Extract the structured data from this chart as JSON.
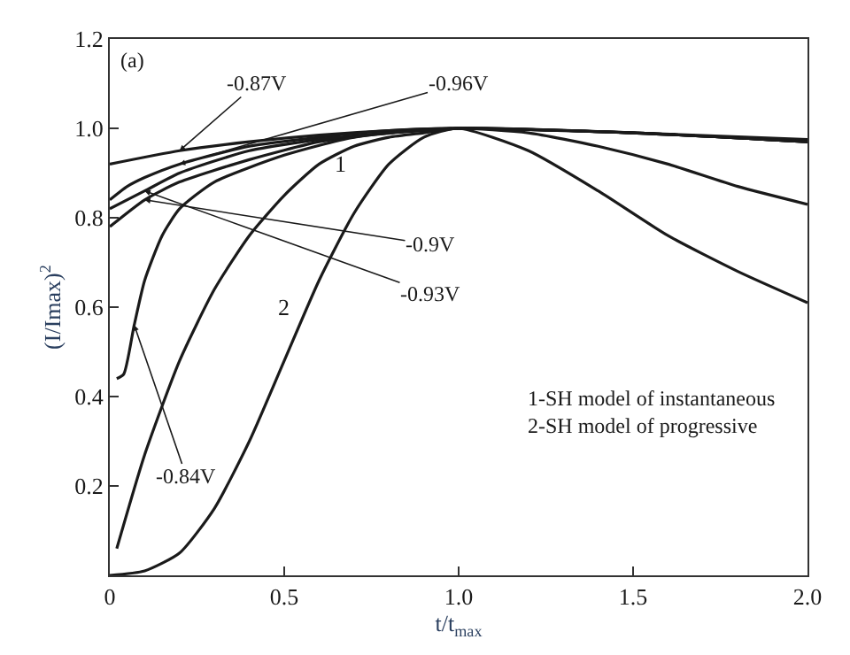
{
  "chart_data": {
    "type": "line",
    "xlabel": "t/t$_{max}$",
    "ylabel": "(I/Imax)$^{2}$",
    "xlim": [
      0,
      2.0
    ],
    "xticks": [
      0,
      0.5,
      {
        "value": 1.0,
        "label": "1.0"
      },
      1.5,
      {
        "value": 2.0,
        "label": "2.0"
      }
    ],
    "ylim": [
      0,
      1.2
    ],
    "yticks": [
      0.2,
      0.4,
      0.6,
      0.8,
      {
        "value": 1.0,
        "label": "1.0"
      },
      1.2
    ],
    "legend": false,
    "marker": "none",
    "line_style": "solid",
    "annotations": [
      "(a)",
      "1-SH model of instantaneous",
      "2-SH model of progressive"
    ],
    "series": [
      {
        "name": "-0.87V",
        "color": "#1a1a1a",
        "x": [
          0,
          0.2,
          0.4,
          0.6,
          0.8,
          1.0,
          1.5,
          2.0
        ],
        "values": [
          0.92,
          0.95,
          0.97,
          0.985,
          0.995,
          1.0,
          0.99,
          0.97
        ]
      },
      {
        "name": "-0.96V",
        "color": "#1a1a1a",
        "x": [
          0,
          0.05,
          0.1,
          0.2,
          0.4,
          0.6,
          0.8,
          1.0,
          1.5,
          2.0
        ],
        "values": [
          0.84,
          0.87,
          0.89,
          0.92,
          0.96,
          0.98,
          0.995,
          1.0,
          0.99,
          0.975
        ]
      },
      {
        "name": "-0.9V",
        "color": "#1a1a1a",
        "x": [
          0,
          0.1,
          0.2,
          0.4,
          0.6,
          0.8,
          1.0,
          1.5,
          2.0
        ],
        "values": [
          0.78,
          0.84,
          0.88,
          0.93,
          0.97,
          0.99,
          1.0,
          0.99,
          0.97
        ]
      },
      {
        "name": "-0.93V",
        "color": "#1a1a1a",
        "x": [
          0,
          0.1,
          0.2,
          0.4,
          0.6,
          0.8,
          1.0,
          1.5,
          2.0
        ],
        "values": [
          0.82,
          0.86,
          0.9,
          0.95,
          0.975,
          0.99,
          1.0,
          0.99,
          0.97
        ]
      },
      {
        "name": "-0.84V",
        "color": "#1a1a1a",
        "x": [
          0.02,
          0.04,
          0.07,
          0.1,
          0.15,
          0.2,
          0.3,
          0.5,
          0.7,
          1.0,
          1.5,
          2.0
        ],
        "values": [
          0.44,
          0.45,
          0.56,
          0.66,
          0.76,
          0.82,
          0.88,
          0.94,
          0.98,
          1.0,
          0.99,
          0.97
        ]
      },
      {
        "name": "1",
        "color": "#1a1a1a",
        "x": [
          0.02,
          0.1,
          0.2,
          0.3,
          0.4,
          0.5,
          0.6,
          0.7,
          0.8,
          0.9,
          1.0,
          1.2,
          1.4,
          1.6,
          1.8,
          2.0
        ],
        "values": [
          0.06,
          0.27,
          0.48,
          0.64,
          0.76,
          0.85,
          0.92,
          0.96,
          0.98,
          0.99,
          1.0,
          0.99,
          0.96,
          0.92,
          0.87,
          0.83
        ]
      },
      {
        "name": "2",
        "color": "#1a1a1a",
        "x": [
          0,
          0.1,
          0.2,
          0.3,
          0.4,
          0.5,
          0.6,
          0.7,
          0.8,
          0.9,
          1.0,
          1.2,
          1.4,
          1.6,
          1.8,
          2.0
        ],
        "values": [
          0,
          0.01,
          0.05,
          0.15,
          0.3,
          0.48,
          0.66,
          0.81,
          0.92,
          0.98,
          1.0,
          0.95,
          0.86,
          0.76,
          0.68,
          0.61
        ]
      }
    ]
  }
}
